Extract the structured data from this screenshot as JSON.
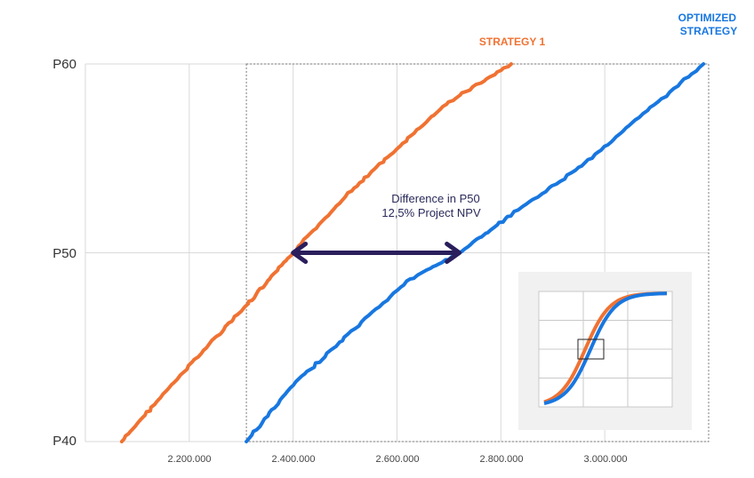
{
  "chart_data": [
    {
      "type": "line",
      "y_ticks": [
        "P40",
        "P50",
        "P60"
      ],
      "y_values": [
        40,
        50,
        60
      ],
      "ylim": [
        40,
        60
      ],
      "x_ticks": [
        "2.200.000",
        "2.400.000",
        "2.600.000",
        "2.800.000",
        "3.000.000"
      ],
      "x_tick_values": [
        2200000,
        2400000,
        2600000,
        2800000,
        3000000
      ],
      "xlim": [
        2000000,
        3200000
      ],
      "grid": true,
      "series": [
        {
          "name": "STRATEGY 1",
          "color": "#F07232",
          "points": [
            [
              2070000,
              40
            ],
            [
              2150000,
              42.5
            ],
            [
              2250000,
              45.5
            ],
            [
              2320000,
              47.5
            ],
            [
              2400000,
              50
            ],
            [
              2500000,
              53
            ],
            [
              2600000,
              55.5
            ],
            [
              2700000,
              58
            ],
            [
              2820000,
              60
            ]
          ]
        },
        {
          "name": "OPTIMIZED STRATEGY",
          "color": "#1877E0",
          "points": [
            [
              2310000,
              40
            ],
            [
              2400000,
              43
            ],
            [
              2500000,
              45.5
            ],
            [
              2620000,
              48.5
            ],
            [
              2720000,
              50
            ],
            [
              2820000,
              52
            ],
            [
              2950000,
              54.5
            ],
            [
              3060000,
              57
            ],
            [
              3190000,
              60
            ]
          ]
        }
      ],
      "annotation": {
        "line1": "Difference in P50",
        "line2": "12,5% Project NPV",
        "from_x": 2400000,
        "to_x": 2720000,
        "y": 50,
        "color": "#2A1E5C"
      },
      "zoom_box": {
        "x_range": [
          2310000,
          3200000
        ],
        "y_range": [
          40,
          60
        ]
      }
    },
    {
      "type": "line",
      "series": [
        {
          "name": "STRATEGY 1",
          "color": "#F07232"
        },
        {
          "name": "OPTIMIZED STRATEGY",
          "color": "#1877E0"
        }
      ],
      "grid": true,
      "background": "#F1F1F1"
    }
  ]
}
